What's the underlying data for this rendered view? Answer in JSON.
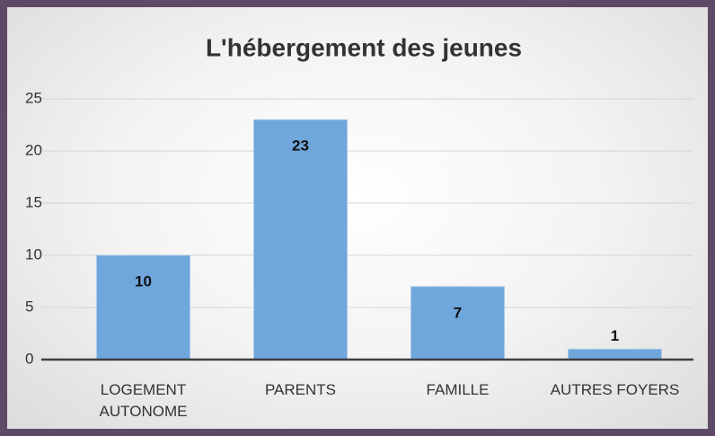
{
  "chart_data": {
    "type": "bar",
    "title": "L'hébergement des jeunes",
    "categories": [
      "LOGEMENT AUTONOME",
      "PARENTS",
      "FAMILLE",
      "AUTRES FOYERS"
    ],
    "values": [
      10,
      23,
      7,
      1
    ],
    "color": "#6fa6dc",
    "ylim": [
      0,
      25
    ],
    "yticks": [
      0,
      5,
      10,
      15,
      20,
      25
    ],
    "grid": true
  }
}
